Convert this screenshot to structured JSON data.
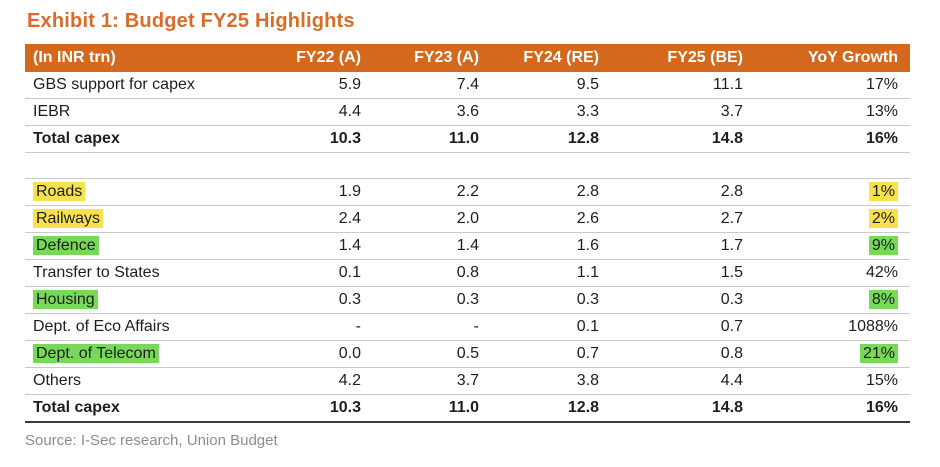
{
  "title": "Exhibit 1: Budget FY25 Highlights",
  "source": "Source: I-Sec research, Union Budget",
  "colors": {
    "title_orange": "#DC6B28",
    "accent_orange": "#D4691E",
    "highlight_yellow": "#F7E24E",
    "highlight_green": "#77D957"
  },
  "chart_data": {
    "type": "table",
    "title": "Budget FY25 Highlights",
    "units": "INR trn",
    "columns": [
      "(In INR trn)",
      "FY22 (A)",
      "FY23 (A)",
      "FY24 (RE)",
      "FY25 (BE)",
      "YoY Growth"
    ],
    "rows": [
      {
        "label": "GBS support for capex",
        "values": [
          "5.9",
          "7.4",
          "9.5",
          "11.1",
          "17%"
        ],
        "bold": false,
        "highlight": null
      },
      {
        "label": "IEBR",
        "values": [
          "4.4",
          "3.6",
          "3.3",
          "3.7",
          "13%"
        ],
        "bold": false,
        "highlight": null
      },
      {
        "label": "Total capex",
        "values": [
          "10.3",
          "11.0",
          "12.8",
          "14.8",
          "16%"
        ],
        "bold": true,
        "highlight": null
      },
      {
        "spacer": true
      },
      {
        "label": "Roads",
        "values": [
          "1.9",
          "2.2",
          "2.8",
          "2.8",
          "1%"
        ],
        "bold": false,
        "highlight": "yellow"
      },
      {
        "label": "Railways",
        "values": [
          "2.4",
          "2.0",
          "2.6",
          "2.7",
          "2%"
        ],
        "bold": false,
        "highlight": "yellow"
      },
      {
        "label": "Defence",
        "values": [
          "1.4",
          "1.4",
          "1.6",
          "1.7",
          "9%"
        ],
        "bold": false,
        "highlight": "green"
      },
      {
        "label": "Transfer to States",
        "values": [
          "0.1",
          "0.8",
          "1.1",
          "1.5",
          "42%"
        ],
        "bold": false,
        "highlight": null
      },
      {
        "label": "Housing",
        "values": [
          "0.3",
          "0.3",
          "0.3",
          "0.3",
          "8%"
        ],
        "bold": false,
        "highlight": "green"
      },
      {
        "label": "Dept. of Eco Affairs",
        "values": [
          "-",
          "-",
          "0.1",
          "0.7",
          "1088%"
        ],
        "bold": false,
        "highlight": null
      },
      {
        "label": "Dept. of Telecom",
        "values": [
          "0.0",
          "0.5",
          "0.7",
          "0.8",
          "21%"
        ],
        "bold": false,
        "highlight": "green"
      },
      {
        "label": "Others",
        "values": [
          "4.2",
          "3.7",
          "3.8",
          "4.4",
          "15%"
        ],
        "bold": false,
        "highlight": null
      },
      {
        "label": "Total capex",
        "values": [
          "10.3",
          "11.0",
          "12.8",
          "14.8",
          "16%"
        ],
        "bold": true,
        "highlight": null
      }
    ]
  }
}
